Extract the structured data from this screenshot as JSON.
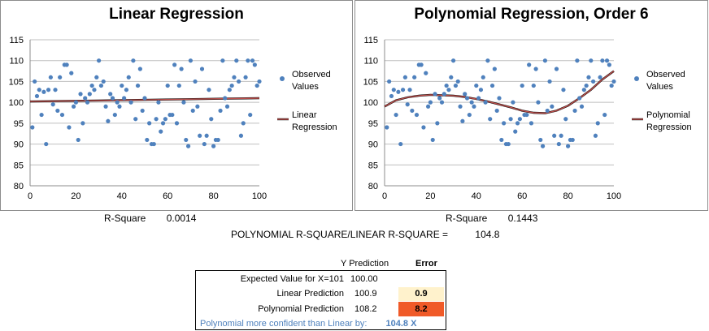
{
  "colors": {
    "marker": "#4f81bd",
    "linear_line": "#c0504d",
    "poly_line": "#c0504d",
    "grid": "#bfbfbf",
    "error_low": "#fff2cc",
    "error_high": "#f05a28",
    "note_text": "#4f81bd"
  },
  "chart_data": [
    {
      "type": "scatter",
      "title": "Linear Regression",
      "xlim": [
        0,
        100
      ],
      "ylim": [
        80,
        115
      ],
      "xticks": [
        "0",
        "20",
        "40",
        "60",
        "80",
        "100"
      ],
      "yticks": [
        "80",
        "85",
        "90",
        "95",
        "100",
        "105",
        "110",
        "115"
      ],
      "grid": "horizontal",
      "legend_position": "right",
      "legend": [
        "Observed Values",
        "Linear Regression"
      ],
      "series": [
        {
          "name": "Observed Values",
          "points": [
            [
              1,
              94
            ],
            [
              2,
              105
            ],
            [
              3,
              101.5
            ],
            [
              4,
              103
            ],
            [
              5,
              97
            ],
            [
              6,
              102.5
            ],
            [
              7,
              90
            ],
            [
              8,
              103
            ],
            [
              9,
              106
            ],
            [
              10,
              99.5
            ],
            [
              11,
              103
            ],
            [
              12,
              98
            ],
            [
              13,
              106
            ],
            [
              14,
              97
            ],
            [
              15,
              109
            ],
            [
              16,
              109
            ],
            [
              17,
              94
            ],
            [
              18,
              107
            ],
            [
              19,
              99
            ],
            [
              20,
              100
            ],
            [
              21,
              91
            ],
            [
              22,
              102
            ],
            [
              23,
              95
            ],
            [
              24,
              101
            ],
            [
              25,
              100
            ],
            [
              26,
              102
            ],
            [
              27,
              104
            ],
            [
              28,
              103
            ],
            [
              29,
              106
            ],
            [
              30,
              110
            ],
            [
              31,
              104
            ],
            [
              32,
              105
            ],
            [
              33,
              99
            ],
            [
              34,
              95.5
            ],
            [
              35,
              102
            ],
            [
              36,
              101
            ],
            [
              37,
              97
            ],
            [
              38,
              100
            ],
            [
              39,
              99
            ],
            [
              40,
              104
            ],
            [
              41,
              101
            ],
            [
              42,
              103
            ],
            [
              43,
              106
            ],
            [
              44,
              100
            ],
            [
              45,
              110
            ],
            [
              46,
              96
            ],
            [
              47,
              104
            ],
            [
              48,
              108
            ],
            [
              49,
              98
            ],
            [
              50,
              101
            ],
            [
              51,
              91
            ],
            [
              52,
              95
            ],
            [
              53,
              90
            ],
            [
              54,
              90
            ],
            [
              55,
              96
            ],
            [
              56,
              100
            ],
            [
              57,
              93
            ],
            [
              58,
              95
            ],
            [
              59,
              96
            ],
            [
              60,
              104
            ],
            [
              61,
              97
            ],
            [
              62,
              97
            ],
            [
              63,
              109
            ],
            [
              64,
              95
            ],
            [
              65,
              104
            ],
            [
              66,
              108
            ],
            [
              67,
              100
            ],
            [
              68,
              91
            ],
            [
              69,
              89.5
            ],
            [
              70,
              110
            ],
            [
              71,
              98
            ],
            [
              72,
              105
            ],
            [
              73,
              99
            ],
            [
              74,
              92
            ],
            [
              75,
              108
            ],
            [
              76,
              90
            ],
            [
              77,
              92
            ],
            [
              78,
              103
            ],
            [
              79,
              96
            ],
            [
              80,
              89.5
            ],
            [
              81,
              91
            ],
            [
              82,
              91
            ],
            [
              83,
              98
            ],
            [
              84,
              110
            ],
            [
              85,
              101
            ],
            [
              86,
              99
            ],
            [
              87,
              103
            ],
            [
              88,
              104
            ],
            [
              89,
              106
            ],
            [
              90,
              110
            ],
            [
              91,
              105
            ],
            [
              92,
              92
            ],
            [
              93,
              95
            ],
            [
              94,
              106
            ],
            [
              95,
              110
            ],
            [
              96,
              97
            ],
            [
              97,
              110
            ],
            [
              98,
              109
            ],
            [
              99,
              104
            ],
            [
              100,
              105
            ]
          ]
        },
        {
          "name": "Linear Regression",
          "x": [
            0,
            100
          ],
          "values": [
            100.2,
            101.0
          ]
        }
      ]
    },
    {
      "type": "scatter",
      "title": "Polynomial Regression, Order 6",
      "xlim": [
        0,
        100
      ],
      "ylim": [
        80,
        115
      ],
      "xticks": [
        "0",
        "20",
        "40",
        "60",
        "80",
        "100"
      ],
      "yticks": [
        "80",
        "85",
        "90",
        "95",
        "100",
        "105",
        "110",
        "115"
      ],
      "grid": "horizontal",
      "legend_position": "right",
      "legend": [
        "Observed Values",
        "Polynomial Regression"
      ],
      "series": [
        {
          "name": "Observed Values",
          "points": [
            [
              1,
              94
            ],
            [
              2,
              105
            ],
            [
              3,
              101.5
            ],
            [
              4,
              103
            ],
            [
              5,
              97
            ],
            [
              6,
              102.5
            ],
            [
              7,
              90
            ],
            [
              8,
              103
            ],
            [
              9,
              106
            ],
            [
              10,
              99.5
            ],
            [
              11,
              103
            ],
            [
              12,
              98
            ],
            [
              13,
              106
            ],
            [
              14,
              97
            ],
            [
              15,
              109
            ],
            [
              16,
              109
            ],
            [
              17,
              94
            ],
            [
              18,
              107
            ],
            [
              19,
              99
            ],
            [
              20,
              100
            ],
            [
              21,
              91
            ],
            [
              22,
              102
            ],
            [
              23,
              95
            ],
            [
              24,
              101
            ],
            [
              25,
              100
            ],
            [
              26,
              102
            ],
            [
              27,
              104
            ],
            [
              28,
              103
            ],
            [
              29,
              106
            ],
            [
              30,
              110
            ],
            [
              31,
              104
            ],
            [
              32,
              105
            ],
            [
              33,
              99
            ],
            [
              34,
              95.5
            ],
            [
              35,
              102
            ],
            [
              36,
              101
            ],
            [
              37,
              97
            ],
            [
              38,
              100
            ],
            [
              39,
              99
            ],
            [
              40,
              104
            ],
            [
              41,
              101
            ],
            [
              42,
              103
            ],
            [
              43,
              106
            ],
            [
              44,
              100
            ],
            [
              45,
              110
            ],
            [
              46,
              96
            ],
            [
              47,
              104
            ],
            [
              48,
              108
            ],
            [
              49,
              98
            ],
            [
              50,
              101
            ],
            [
              51,
              91
            ],
            [
              52,
              95
            ],
            [
              53,
              90
            ],
            [
              54,
              90
            ],
            [
              55,
              96
            ],
            [
              56,
              100
            ],
            [
              57,
              93
            ],
            [
              58,
              95
            ],
            [
              59,
              96
            ],
            [
              60,
              104
            ],
            [
              61,
              97
            ],
            [
              62,
              97
            ],
            [
              63,
              109
            ],
            [
              64,
              95
            ],
            [
              65,
              104
            ],
            [
              66,
              108
            ],
            [
              67,
              100
            ],
            [
              68,
              91
            ],
            [
              69,
              89.5
            ],
            [
              70,
              110
            ],
            [
              71,
              98
            ],
            [
              72,
              105
            ],
            [
              73,
              99
            ],
            [
              74,
              92
            ],
            [
              75,
              108
            ],
            [
              76,
              90
            ],
            [
              77,
              92
            ],
            [
              78,
              103
            ],
            [
              79,
              96
            ],
            [
              80,
              89.5
            ],
            [
              81,
              91
            ],
            [
              82,
              91
            ],
            [
              83,
              98
            ],
            [
              84,
              110
            ],
            [
              85,
              101
            ],
            [
              86,
              99
            ],
            [
              87,
              103
            ],
            [
              88,
              104
            ],
            [
              89,
              106
            ],
            [
              90,
              110
            ],
            [
              91,
              105
            ],
            [
              92,
              92
            ],
            [
              93,
              95
            ],
            [
              94,
              106
            ],
            [
              95,
              110
            ],
            [
              96,
              97
            ],
            [
              97,
              110
            ],
            [
              98,
              109
            ],
            [
              99,
              104
            ],
            [
              100,
              105
            ]
          ]
        },
        {
          "name": "Polynomial Regression",
          "x": [
            0,
            5,
            10,
            15,
            20,
            25,
            30,
            35,
            40,
            45,
            50,
            55,
            60,
            65,
            70,
            75,
            80,
            85,
            90,
            95,
            100
          ],
          "values": [
            99.0,
            100.5,
            101.2,
            101.6,
            101.8,
            101.7,
            101.6,
            101.3,
            100.8,
            100.2,
            99.5,
            98.8,
            98.0,
            97.5,
            97.4,
            98.0,
            99.2,
            101.0,
            103.0,
            105.5,
            107.5
          ]
        }
      ]
    }
  ],
  "stats": {
    "linear_rsq_label": "R-Square",
    "linear_rsq_value": "0.0014",
    "poly_rsq_label": "R-Square",
    "poly_rsq_value": "0.1443",
    "ratio_label": "POLYNOMIAL R-SQUARE/LINEAR R-SQUARE =",
    "ratio_value": "104.8"
  },
  "prediction_table": {
    "header_pred": "Y Prediction",
    "header_error": "Error",
    "rows": [
      {
        "label": "Expected Value for X=101",
        "pred": "100.00",
        "error": ""
      },
      {
        "label": "Linear Prediction",
        "pred": "100.9",
        "error": "0.9"
      },
      {
        "label": "Polynomial Prediction",
        "pred": "108.2",
        "error": "8.2"
      }
    ],
    "note_label": "Polynomial more confident than Linear by:",
    "note_value": "104.8 X"
  }
}
